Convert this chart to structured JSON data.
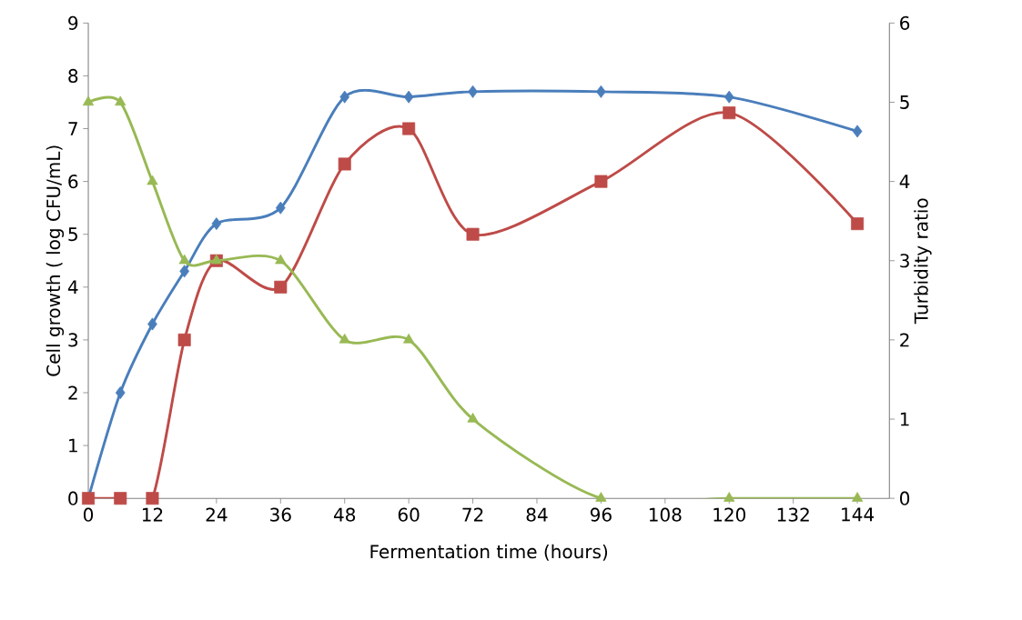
{
  "chart_data": {
    "type": "line",
    "xlabel": "Fermentation time (hours)",
    "ylabel": "Cell growth ( log CFU/mL)",
    "y2label": "Turbidity ratio",
    "x": [
      0,
      6,
      12,
      18,
      24,
      36,
      48,
      60,
      72,
      96,
      120,
      144
    ],
    "series": [
      {
        "color": "#4a7ebb",
        "marker": "diamond",
        "axis": "y",
        "values": [
          0,
          2,
          3.3,
          4.3,
          5.2,
          5.5,
          7.6,
          7.6,
          7.7,
          7.7,
          7.6,
          6.95
        ]
      },
      {
        "color": "#be4b48",
        "marker": "square",
        "axis": "y",
        "values": [
          0,
          0,
          0,
          3,
          4.5,
          4,
          6.33,
          7,
          5,
          6,
          7.3,
          5.2
        ]
      },
      {
        "color": "#98b954",
        "marker": "triangle",
        "axis": "y2",
        "values": [
          5,
          5,
          4,
          3,
          3,
          3,
          2,
          2,
          1,
          0,
          0,
          0
        ]
      }
    ],
    "xlim": [
      0,
      150
    ],
    "xticks": [
      0,
      12,
      24,
      36,
      48,
      60,
      72,
      84,
      96,
      108,
      120,
      132,
      144
    ],
    "ylim": [
      0,
      9
    ],
    "yticks": [
      0,
      1,
      2,
      3,
      4,
      5,
      6,
      7,
      8,
      9
    ],
    "y2lim": [
      0,
      6
    ],
    "y2ticks": [
      0,
      1,
      2,
      3,
      4,
      5,
      6
    ],
    "grid": false
  }
}
